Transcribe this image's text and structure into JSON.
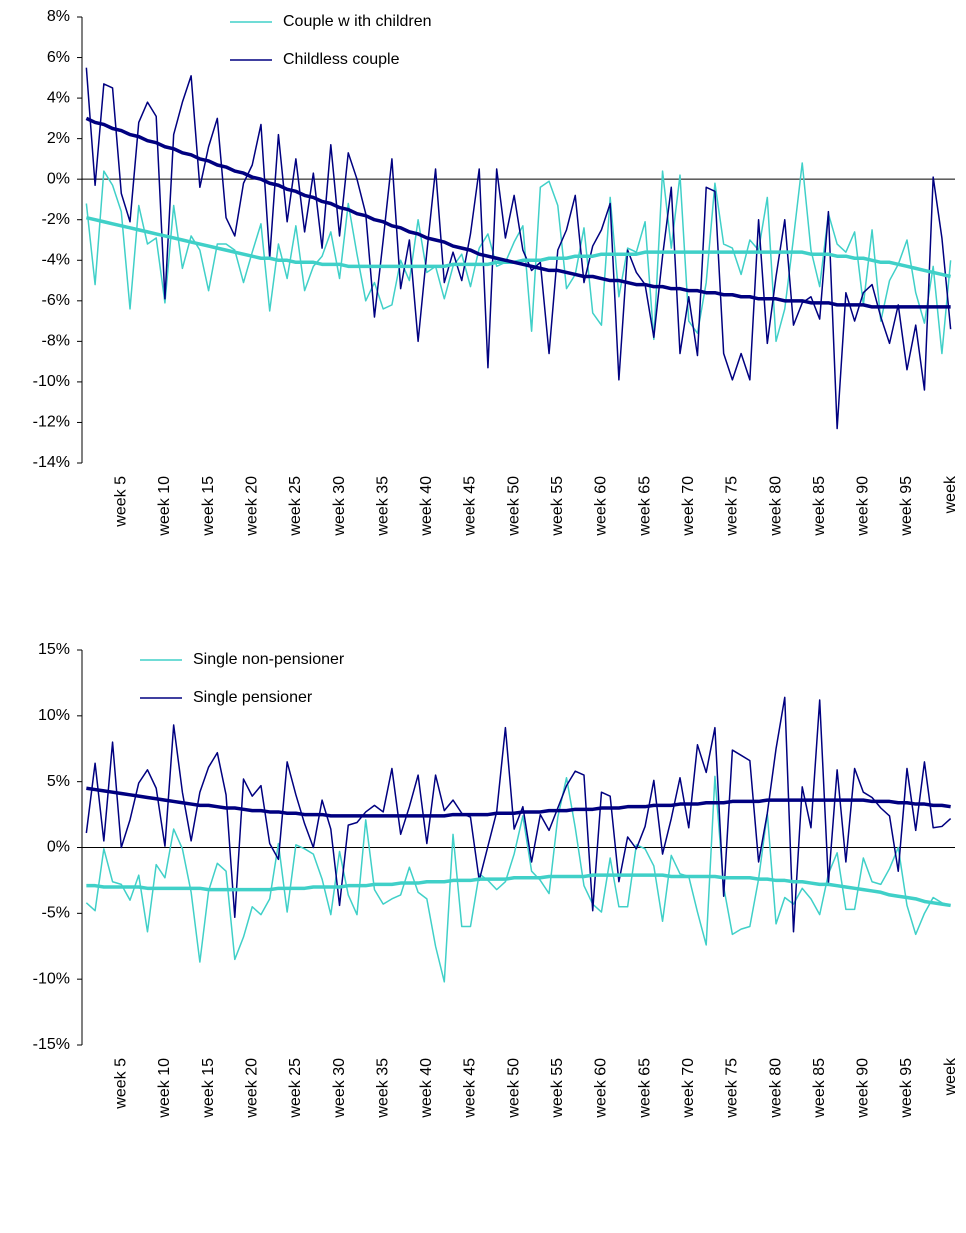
{
  "chart_data": [
    {
      "type": "line",
      "categories": [
        null,
        null,
        null,
        null,
        "week 5",
        null,
        null,
        null,
        null,
        "week 10",
        null,
        null,
        null,
        null,
        "week 15",
        null,
        null,
        null,
        null,
        "week 20",
        null,
        null,
        null,
        null,
        "week 25",
        null,
        null,
        null,
        null,
        "week 30",
        null,
        null,
        null,
        null,
        "week 35",
        null,
        null,
        null,
        null,
        "week 40",
        null,
        null,
        null,
        null,
        "week 45",
        null,
        null,
        null,
        null,
        "week 50",
        null,
        null,
        null,
        null,
        "week 55",
        null,
        null,
        null,
        null,
        "week 60",
        null,
        null,
        null,
        null,
        "week 65",
        null,
        null,
        null,
        null,
        "week 70",
        null,
        null,
        null,
        null,
        "week 75",
        null,
        null,
        null,
        null,
        "week 80",
        null,
        null,
        null,
        null,
        "week 85",
        null,
        null,
        null,
        null,
        "week 90",
        null,
        null,
        null,
        null,
        "week 95",
        null,
        null,
        null,
        null,
        "week"
      ],
      "ylim": [
        -14,
        8
      ],
      "yticks": [
        {
          "value": -14,
          "label": "-14%"
        },
        {
          "value": -12,
          "label": "-12%"
        },
        {
          "value": -10,
          "label": "-10%"
        },
        {
          "value": -8,
          "label": "-8%"
        },
        {
          "value": -6,
          "label": "-6%"
        },
        {
          "value": -4,
          "label": "-4%"
        },
        {
          "value": -2,
          "label": "-2%"
        },
        {
          "value": 0,
          "label": "0%"
        },
        {
          "value": 2,
          "label": "2%"
        },
        {
          "value": 4,
          "label": "4%"
        },
        {
          "value": 6,
          "label": "6%"
        },
        {
          "value": 8,
          "label": "8%"
        }
      ],
      "legend": "upper-left",
      "series": [
        {
          "name": "Couple w ith children",
          "color": "#40d0c8",
          "line_width": 1.5,
          "values": [
            -1.2,
            -5.2,
            0.4,
            -0.3,
            -1.6,
            -6.4,
            -1.3,
            -3.2,
            -2.9,
            -6.1,
            -1.3,
            -4.4,
            -2.8,
            -3.5,
            -5.5,
            -3.2,
            -3.2,
            -3.5,
            -5.1,
            -3.6,
            -2.2,
            -6.5,
            -3.2,
            -4.9,
            -2.3,
            -5.5,
            -4.3,
            -3.8,
            -2.6,
            -4.9,
            -1.2,
            -3.7,
            -6.0,
            -5.1,
            -6.4,
            -6.2,
            -4.0,
            -5.0,
            -2.0,
            -4.6,
            -4.3,
            -5.9,
            -4.3,
            -3.7,
            -5.3,
            -3.4,
            -2.7,
            -4.3,
            -4.1,
            -3.1,
            -2.3,
            -7.5,
            -0.4,
            -0.1,
            -1.3,
            -5.4,
            -4.7,
            -2.4,
            -6.6,
            -7.2,
            -0.9,
            -5.8,
            -3.4,
            -3.6,
            -2.1,
            -7.9,
            0.4,
            -3.4,
            0.2,
            -7.0,
            -7.6,
            -5.1,
            -0.2,
            -3.2,
            -3.4,
            -4.7,
            -3.0,
            -3.5,
            -0.9,
            -8.0,
            -6.4,
            -2.9,
            0.8,
            -3.5,
            -5.3,
            -1.7,
            -3.2,
            -3.6,
            -2.6,
            -6.2,
            -2.5,
            -7.0,
            -5.0,
            -4.2,
            -3.0,
            -5.6,
            -7.1,
            -4.3,
            -8.6,
            -4.0
          ]
        },
        {
          "name": "Childless couple",
          "color": "#000080",
          "line_width": 1.5,
          "values": [
            5.5,
            -0.3,
            4.7,
            4.5,
            -0.7,
            -2.1,
            2.8,
            3.8,
            3.1,
            -5.9,
            2.2,
            3.8,
            5.1,
            -0.4,
            1.6,
            3.0,
            -1.9,
            -2.8,
            -0.2,
            0.7,
            2.7,
            -3.9,
            2.2,
            -2.1,
            1.0,
            -2.6,
            0.3,
            -3.4,
            1.7,
            -2.8,
            1.3,
            0.0,
            -1.7,
            -6.8,
            -3.0,
            1.0,
            -5.4,
            -3.0,
            -8.0,
            -3.6,
            0.5,
            -5.1,
            -3.6,
            -5.0,
            -2.7,
            0.5,
            -9.3,
            0.5,
            -2.9,
            -0.8,
            -3.5,
            -4.5,
            -4.1,
            -8.6,
            -3.5,
            -2.5,
            -0.8,
            -5.1,
            -3.3,
            -2.5,
            -1.2,
            -9.9,
            -3.5,
            -4.6,
            -5.2,
            -7.8,
            -3.8,
            -0.4,
            -8.6,
            -5.8,
            -8.7,
            -0.4,
            -0.6,
            -8.6,
            -9.9,
            -8.6,
            -9.9,
            -2.0,
            -8.1,
            -4.8,
            -2.0,
            -7.2,
            -6.1,
            -5.8,
            -6.9,
            -1.6,
            -12.3,
            -5.6,
            -7.0,
            -5.6,
            -5.2,
            -6.8,
            -8.1,
            -6.2,
            -9.4,
            -7.2,
            -10.4,
            0.1,
            -2.9,
            -7.4
          ]
        },
        {
          "color": "#40d0c8",
          "line_width": 3.5,
          "values": [
            -1.9,
            -2.0,
            -2.1,
            -2.2,
            -2.3,
            -2.4,
            -2.5,
            -2.6,
            -2.7,
            -2.8,
            -2.9,
            -3.0,
            -3.1,
            -3.2,
            -3.3,
            -3.4,
            -3.5,
            -3.6,
            -3.7,
            -3.8,
            -3.9,
            -3.9,
            -4.0,
            -4.0,
            -4.1,
            -4.1,
            -4.1,
            -4.2,
            -4.2,
            -4.2,
            -4.3,
            -4.3,
            -4.3,
            -4.3,
            -4.3,
            -4.3,
            -4.3,
            -4.3,
            -4.3,
            -4.3,
            -4.3,
            -4.3,
            -4.2,
            -4.2,
            -4.2,
            -4.2,
            -4.2,
            -4.1,
            -4.1,
            -4.1,
            -4.0,
            -4.0,
            -4.0,
            -3.9,
            -3.9,
            -3.9,
            -3.8,
            -3.8,
            -3.8,
            -3.7,
            -3.7,
            -3.7,
            -3.7,
            -3.7,
            -3.6,
            -3.6,
            -3.6,
            -3.6,
            -3.6,
            -3.6,
            -3.6,
            -3.6,
            -3.6,
            -3.6,
            -3.6,
            -3.6,
            -3.6,
            -3.6,
            -3.6,
            -3.6,
            -3.6,
            -3.6,
            -3.6,
            -3.7,
            -3.7,
            -3.7,
            -3.8,
            -3.8,
            -3.9,
            -3.9,
            -4.0,
            -4.1,
            -4.1,
            -4.2,
            -4.3,
            -4.4,
            -4.5,
            -4.6,
            -4.7,
            -4.8
          ]
        },
        {
          "color": "#000080",
          "line_width": 3.5,
          "values": [
            3.0,
            2.8,
            2.7,
            2.5,
            2.4,
            2.2,
            2.1,
            1.9,
            1.8,
            1.6,
            1.5,
            1.3,
            1.2,
            1.0,
            0.9,
            0.7,
            0.6,
            0.4,
            0.3,
            0.1,
            0.0,
            -0.2,
            -0.3,
            -0.5,
            -0.6,
            -0.8,
            -0.9,
            -1.1,
            -1.2,
            -1.4,
            -1.5,
            -1.7,
            -1.8,
            -2.0,
            -2.1,
            -2.3,
            -2.4,
            -2.6,
            -2.7,
            -2.9,
            -3.0,
            -3.1,
            -3.3,
            -3.4,
            -3.5,
            -3.7,
            -3.8,
            -3.9,
            -4.0,
            -4.1,
            -4.2,
            -4.3,
            -4.4,
            -4.5,
            -4.5,
            -4.6,
            -4.7,
            -4.8,
            -4.8,
            -4.9,
            -5.0,
            -5.0,
            -5.1,
            -5.2,
            -5.2,
            -5.3,
            -5.3,
            -5.4,
            -5.4,
            -5.5,
            -5.5,
            -5.6,
            -5.6,
            -5.7,
            -5.7,
            -5.8,
            -5.8,
            -5.9,
            -5.9,
            -5.9,
            -6.0,
            -6.0,
            -6.0,
            -6.1,
            -6.1,
            -6.1,
            -6.2,
            -6.2,
            -6.2,
            -6.2,
            -6.3,
            -6.3,
            -6.3,
            -6.3,
            -6.3,
            -6.3,
            -6.3,
            -6.3,
            -6.3,
            -6.3
          ]
        }
      ]
    },
    {
      "type": "line",
      "categories": [
        null,
        null,
        null,
        null,
        "week 5",
        null,
        null,
        null,
        null,
        "week 10",
        null,
        null,
        null,
        null,
        "week 15",
        null,
        null,
        null,
        null,
        "week 20",
        null,
        null,
        null,
        null,
        "week 25",
        null,
        null,
        null,
        null,
        "week 30",
        null,
        null,
        null,
        null,
        "week 35",
        null,
        null,
        null,
        null,
        "week 40",
        null,
        null,
        null,
        null,
        "week 45",
        null,
        null,
        null,
        null,
        "week 50",
        null,
        null,
        null,
        null,
        "week 55",
        null,
        null,
        null,
        null,
        "week 60",
        null,
        null,
        null,
        null,
        "week 65",
        null,
        null,
        null,
        null,
        "week 70",
        null,
        null,
        null,
        null,
        "week 75",
        null,
        null,
        null,
        null,
        "week 80",
        null,
        null,
        null,
        null,
        "week 85",
        null,
        null,
        null,
        null,
        "week 90",
        null,
        null,
        null,
        null,
        "week 95",
        null,
        null,
        null,
        null,
        "week"
      ],
      "ylim": [
        -15,
        15
      ],
      "yticks": [
        {
          "value": -15,
          "label": "-15%"
        },
        {
          "value": -10,
          "label": "-10%"
        },
        {
          "value": -5,
          "label": "-5%"
        },
        {
          "value": 0,
          "label": "0%"
        },
        {
          "value": 5,
          "label": "5%"
        },
        {
          "value": 10,
          "label": "10%"
        },
        {
          "value": 15,
          "label": "15%"
        }
      ],
      "legend": "upper-left",
      "series": [
        {
          "name": "Single non-pensioner",
          "color": "#40d0c8",
          "line_width": 1.5,
          "values": [
            -4.2,
            -4.8,
            -0.1,
            -2.6,
            -2.8,
            -4.0,
            -2.1,
            -6.4,
            -1.3,
            -2.3,
            1.4,
            -0.1,
            -3.4,
            -8.7,
            -3.3,
            -1.2,
            -1.8,
            -8.5,
            -6.8,
            -4.5,
            -5.1,
            -3.9,
            0.3,
            -4.9,
            0.2,
            -0.1,
            -0.5,
            -2.4,
            -5.1,
            -0.3,
            -3.6,
            -5.1,
            2.1,
            -3.2,
            -4.3,
            -3.9,
            -3.6,
            -1.5,
            -3.4,
            -3.9,
            -7.5,
            -10.2,
            1.0,
            -6.0,
            -6.0,
            -2.0,
            -2.5,
            -3.2,
            -2.6,
            -0.5,
            2.4,
            -1.8,
            -2.5,
            -3.5,
            2.3,
            5.3,
            1.5,
            -2.9,
            -4.3,
            -4.9,
            -0.8,
            -4.5,
            -4.5,
            0.2,
            -0.1,
            -1.4,
            -5.6,
            -0.6,
            -2.0,
            -2.2,
            -4.9,
            -7.4,
            5.4,
            -3.0,
            -6.6,
            -6.2,
            -6.0,
            -2.4,
            2.6,
            -5.8,
            -3.8,
            -4.3,
            -3.1,
            -3.9,
            -5.1,
            -2.0,
            -0.4,
            -4.7,
            -4.7,
            -0.8,
            -2.6,
            -2.8,
            -1.6,
            0.0,
            -4.4,
            -6.6,
            -5.0,
            -3.8,
            -4.2,
            -4.4
          ]
        },
        {
          "name": "Single pensioner",
          "color": "#000080",
          "line_width": 1.5,
          "values": [
            1.1,
            6.4,
            0.5,
            8.0,
            0.0,
            2.1,
            4.9,
            5.9,
            4.5,
            0.1,
            9.3,
            4.2,
            0.5,
            4.2,
            6.1,
            7.2,
            4.0,
            -5.3,
            5.2,
            3.9,
            4.7,
            0.3,
            -0.9,
            6.5,
            4.0,
            1.8,
            0.0,
            3.6,
            1.4,
            -4.4,
            1.7,
            1.9,
            2.7,
            3.2,
            2.7,
            6.0,
            1.0,
            3.1,
            5.5,
            0.3,
            5.5,
            2.8,
            3.6,
            2.6,
            2.3,
            -2.5,
            0.1,
            2.7,
            9.1,
            1.4,
            3.1,
            -1.1,
            2.5,
            1.3,
            3.0,
            4.7,
            5.8,
            5.5,
            -4.8,
            4.2,
            3.9,
            -2.6,
            0.8,
            -0.1,
            1.6,
            5.1,
            -0.5,
            2.2,
            5.3,
            1.5,
            7.8,
            5.7,
            9.1,
            -3.7,
            7.4,
            7.0,
            6.6,
            -1.1,
            2.6,
            7.5,
            11.4,
            -6.4,
            4.6,
            1.5,
            11.2,
            -2.7,
            5.9,
            -1.1,
            6.0,
            4.2,
            3.8,
            3.0,
            2.4,
            -1.8,
            6.0,
            1.3,
            6.5,
            1.5,
            1.6,
            2.2
          ]
        },
        {
          "color": "#40d0c8",
          "line_width": 3.5,
          "values": [
            -2.9,
            -2.9,
            -3.0,
            -3.0,
            -3.0,
            -3.0,
            -3.0,
            -3.1,
            -3.1,
            -3.1,
            -3.1,
            -3.1,
            -3.1,
            -3.1,
            -3.2,
            -3.2,
            -3.2,
            -3.2,
            -3.2,
            -3.2,
            -3.2,
            -3.2,
            -3.1,
            -3.1,
            -3.1,
            -3.1,
            -3.0,
            -3.0,
            -3.0,
            -3.0,
            -2.9,
            -2.9,
            -2.9,
            -2.8,
            -2.8,
            -2.8,
            -2.7,
            -2.7,
            -2.7,
            -2.6,
            -2.6,
            -2.6,
            -2.5,
            -2.5,
            -2.5,
            -2.4,
            -2.4,
            -2.4,
            -2.4,
            -2.3,
            -2.3,
            -2.3,
            -2.3,
            -2.2,
            -2.2,
            -2.2,
            -2.2,
            -2.2,
            -2.1,
            -2.1,
            -2.1,
            -2.1,
            -2.1,
            -2.1,
            -2.1,
            -2.1,
            -2.1,
            -2.2,
            -2.2,
            -2.2,
            -2.2,
            -2.2,
            -2.2,
            -2.3,
            -2.3,
            -2.3,
            -2.3,
            -2.4,
            -2.4,
            -2.5,
            -2.5,
            -2.6,
            -2.6,
            -2.7,
            -2.8,
            -2.8,
            -2.9,
            -3.0,
            -3.1,
            -3.2,
            -3.3,
            -3.4,
            -3.6,
            -3.7,
            -3.8,
            -3.9,
            -4.1,
            -4.2,
            -4.3,
            -4.4
          ]
        },
        {
          "color": "#000080",
          "line_width": 3.5,
          "values": [
            4.5,
            4.4,
            4.3,
            4.2,
            4.1,
            4.0,
            3.9,
            3.8,
            3.7,
            3.6,
            3.5,
            3.4,
            3.3,
            3.2,
            3.2,
            3.1,
            3.0,
            3.0,
            2.9,
            2.8,
            2.8,
            2.7,
            2.7,
            2.6,
            2.6,
            2.5,
            2.5,
            2.5,
            2.4,
            2.4,
            2.4,
            2.4,
            2.4,
            2.4,
            2.4,
            2.4,
            2.4,
            2.4,
            2.4,
            2.4,
            2.4,
            2.4,
            2.5,
            2.5,
            2.5,
            2.5,
            2.5,
            2.6,
            2.6,
            2.6,
            2.7,
            2.7,
            2.7,
            2.8,
            2.8,
            2.8,
            2.9,
            2.9,
            2.9,
            3.0,
            3.0,
            3.0,
            3.1,
            3.1,
            3.1,
            3.2,
            3.2,
            3.2,
            3.3,
            3.3,
            3.3,
            3.4,
            3.4,
            3.4,
            3.5,
            3.5,
            3.5,
            3.5,
            3.6,
            3.6,
            3.6,
            3.6,
            3.6,
            3.6,
            3.6,
            3.6,
            3.6,
            3.6,
            3.6,
            3.6,
            3.5,
            3.5,
            3.5,
            3.4,
            3.4,
            3.3,
            3.3,
            3.2,
            3.2,
            3.1
          ]
        }
      ]
    }
  ]
}
